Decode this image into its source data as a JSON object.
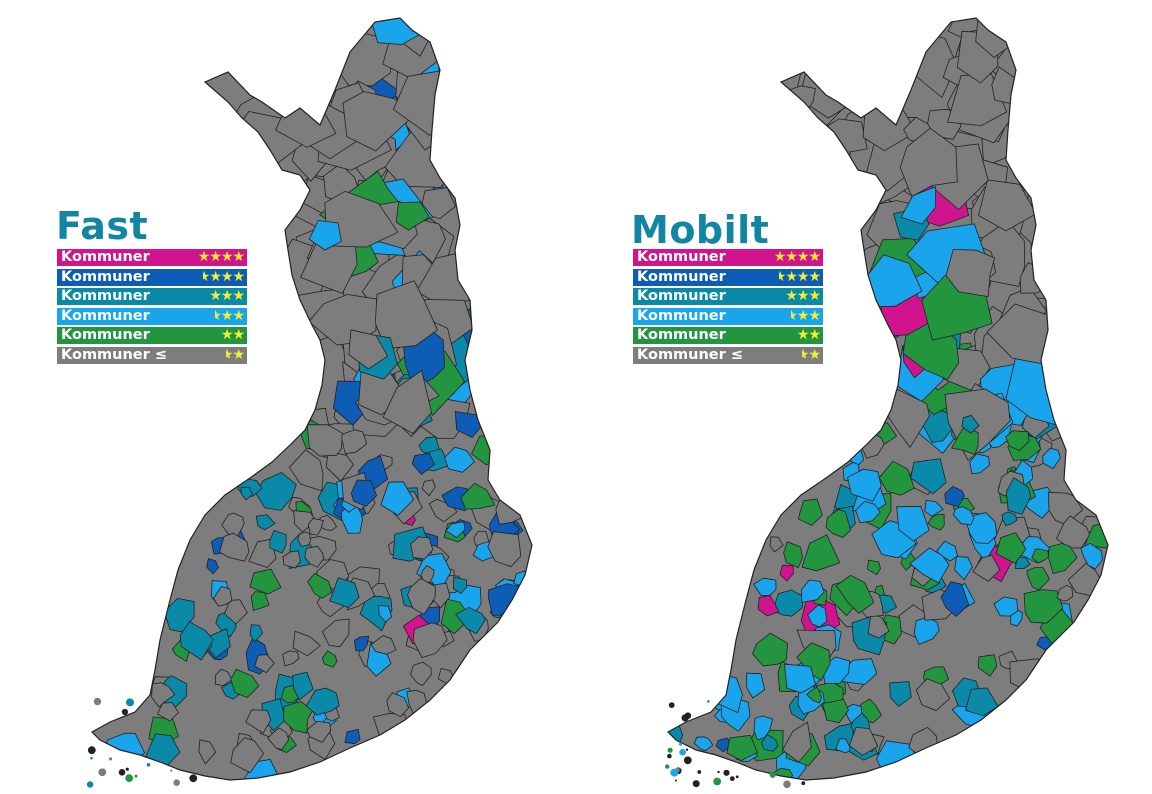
{
  "colors": {
    "magenta": "#d0148e",
    "dark_blue": "#0d5cb6",
    "teal": "#0a8aa8",
    "light_blue": "#1aa4ec",
    "green": "#24953f",
    "gray": "#7d7d7d",
    "border": "#222222",
    "title": "#1186a3",
    "star": "#f5ee2a"
  },
  "legend": [
    {
      "label": "Kommuner",
      "color": "#d0148e",
      "full_stars": 4,
      "half_star": false
    },
    {
      "label": "Kommuner",
      "color": "#0d5cb6",
      "full_stars": 3,
      "half_star": true
    },
    {
      "label": "Kommuner",
      "color": "#0a8aa8",
      "full_stars": 3,
      "half_star": false
    },
    {
      "label": "Kommuner",
      "color": "#1aa4ec",
      "full_stars": 2,
      "half_star": true
    },
    {
      "label": "Kommuner",
      "color": "#24953f",
      "full_stars": 2,
      "half_star": false
    },
    {
      "label": "Kommuner ≤",
      "color": "#7d7d7d",
      "full_stars": 1,
      "half_star": true
    }
  ],
  "maps": [
    {
      "title": "Fast",
      "dominant": [
        "gray",
        "gray",
        "gray",
        "teal",
        "light_blue",
        "green",
        "dark_blue"
      ],
      "accent": [
        "magenta",
        "dark_blue",
        "teal"
      ]
    },
    {
      "title": "Mobilt",
      "dominant": [
        "light_blue",
        "light_blue",
        "green",
        "green",
        "teal",
        "gray"
      ],
      "accent": [
        "magenta",
        "dark_blue"
      ]
    }
  ]
}
